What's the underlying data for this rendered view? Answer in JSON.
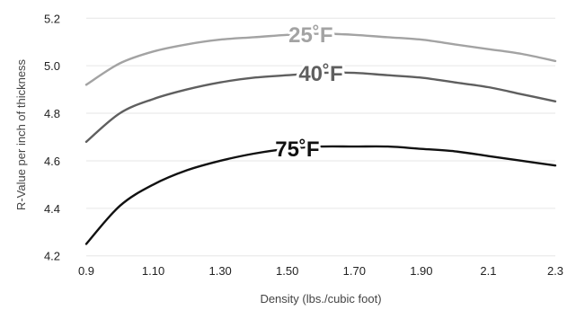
{
  "chart_data": {
    "type": "line",
    "title": "",
    "xlabel": "Density (lbs./cubic foot)",
    "ylabel": "R-Value per inch of thickness",
    "xlim": [
      0.9,
      2.3
    ],
    "ylim": [
      4.18,
      5.22
    ],
    "x_ticks": [
      0.9,
      1.1,
      1.3,
      1.5,
      1.7,
      1.9,
      2.1,
      2.3
    ],
    "x_tick_labels": [
      "0.9",
      "1.10",
      "1.30",
      "1.50",
      "1.70",
      "1.90",
      "2.1",
      "2.3"
    ],
    "y_ticks": [
      4.2,
      4.4,
      4.6,
      4.8,
      5.0,
      5.2
    ],
    "y_tick_labels": [
      "4.2",
      "4.4",
      "4.6",
      "4.8",
      "5.0",
      "5.2"
    ],
    "grid": true,
    "legend": "inline labels on curves",
    "series": [
      {
        "name": "25˚F",
        "color": "#a3a3a3",
        "label_at": 1.57,
        "x": [
          0.9,
          1.0,
          1.1,
          1.2,
          1.3,
          1.4,
          1.5,
          1.6,
          1.7,
          1.8,
          1.9,
          2.0,
          2.1,
          2.2,
          2.3
        ],
        "y": [
          4.92,
          5.01,
          5.06,
          5.09,
          5.11,
          5.12,
          5.13,
          5.135,
          5.13,
          5.12,
          5.11,
          5.09,
          5.07,
          5.05,
          5.02
        ]
      },
      {
        "name": "40˚F",
        "color": "#5f5f5f",
        "label_at": 1.6,
        "x": [
          0.9,
          1.0,
          1.1,
          1.2,
          1.3,
          1.4,
          1.5,
          1.6,
          1.7,
          1.8,
          1.9,
          2.0,
          2.1,
          2.2,
          2.3
        ],
        "y": [
          4.68,
          4.8,
          4.86,
          4.9,
          4.93,
          4.95,
          4.96,
          4.97,
          4.97,
          4.96,
          4.95,
          4.93,
          4.91,
          4.88,
          4.85
        ]
      },
      {
        "name": "75˚F",
        "color": "#111111",
        "label_at": 1.53,
        "x": [
          0.9,
          1.0,
          1.1,
          1.2,
          1.3,
          1.4,
          1.5,
          1.6,
          1.7,
          1.8,
          1.9,
          2.0,
          2.1,
          2.2,
          2.3
        ],
        "y": [
          4.25,
          4.41,
          4.5,
          4.56,
          4.6,
          4.63,
          4.65,
          4.66,
          4.66,
          4.66,
          4.65,
          4.64,
          4.62,
          4.6,
          4.58
        ]
      }
    ]
  }
}
